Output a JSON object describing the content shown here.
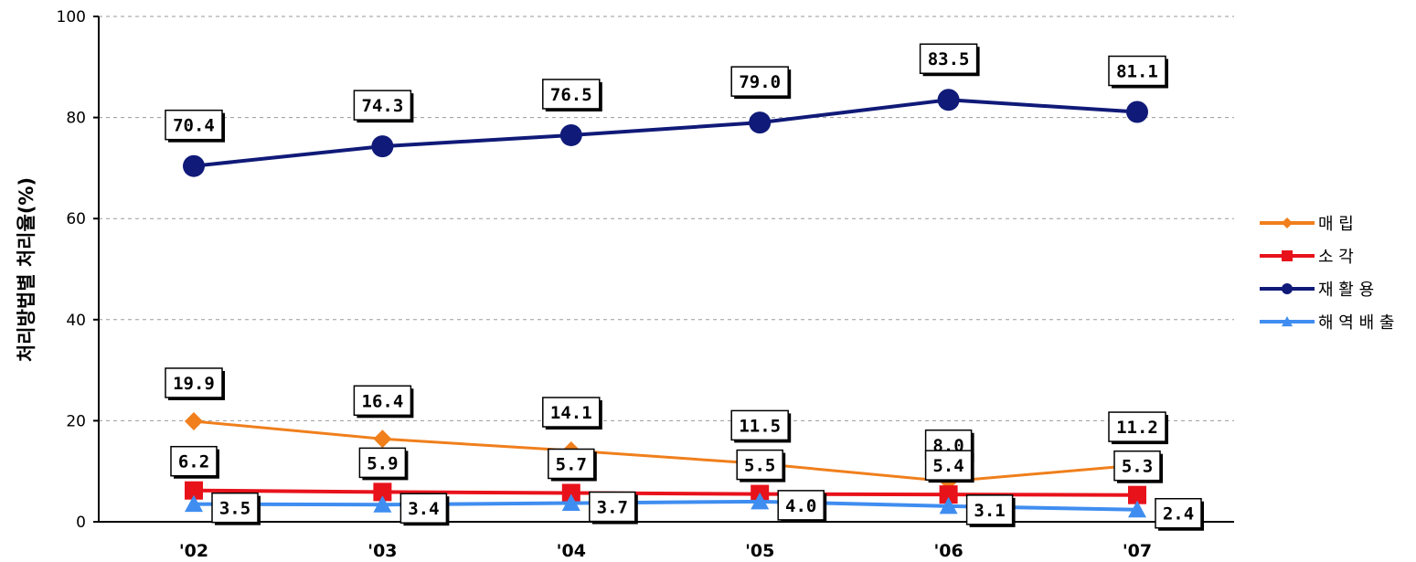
{
  "chart_data": {
    "type": "line",
    "title": "",
    "xlabel": "",
    "ylabel": "처리방법별 처리율(%)",
    "categories": [
      "'02",
      "'03",
      "'04",
      "'05",
      "'06",
      "'07"
    ],
    "yticks": [
      "0",
      "20",
      "40",
      "60",
      "80",
      "100"
    ],
    "ylim": [
      0,
      100
    ],
    "grid": true,
    "legend_position": "right",
    "series": [
      {
        "name": "매    립",
        "color": "#f07f1c",
        "marker": "diamond",
        "values": [
          19.9,
          16.4,
          14.1,
          11.5,
          8.0,
          11.2
        ],
        "labels": [
          "19.9",
          "16.4",
          "14.1",
          "11.5",
          "8.0",
          "11.2"
        ]
      },
      {
        "name": "소    각",
        "color": "#e8121b",
        "marker": "square",
        "values": [
          6.2,
          5.9,
          5.7,
          5.5,
          5.4,
          5.3
        ],
        "labels": [
          "6.2",
          "5.9",
          "5.7",
          "5.5",
          "5.4",
          "5.3"
        ]
      },
      {
        "name": "재 활 용",
        "color": "#101a78",
        "marker": "circle",
        "values": [
          70.4,
          74.3,
          76.5,
          79.0,
          83.5,
          81.1
        ],
        "labels": [
          "70.4",
          "74.3",
          "76.5",
          "79.0",
          "83.5",
          "81.1"
        ]
      },
      {
        "name": "해 역 배 출",
        "color": "#3f8df0",
        "marker": "triangle",
        "values": [
          3.5,
          3.4,
          3.7,
          4.0,
          3.1,
          2.4
        ],
        "labels": [
          "3.5",
          "3.4",
          "3.7",
          "4.0",
          "3.1",
          "2.4"
        ]
      }
    ]
  }
}
